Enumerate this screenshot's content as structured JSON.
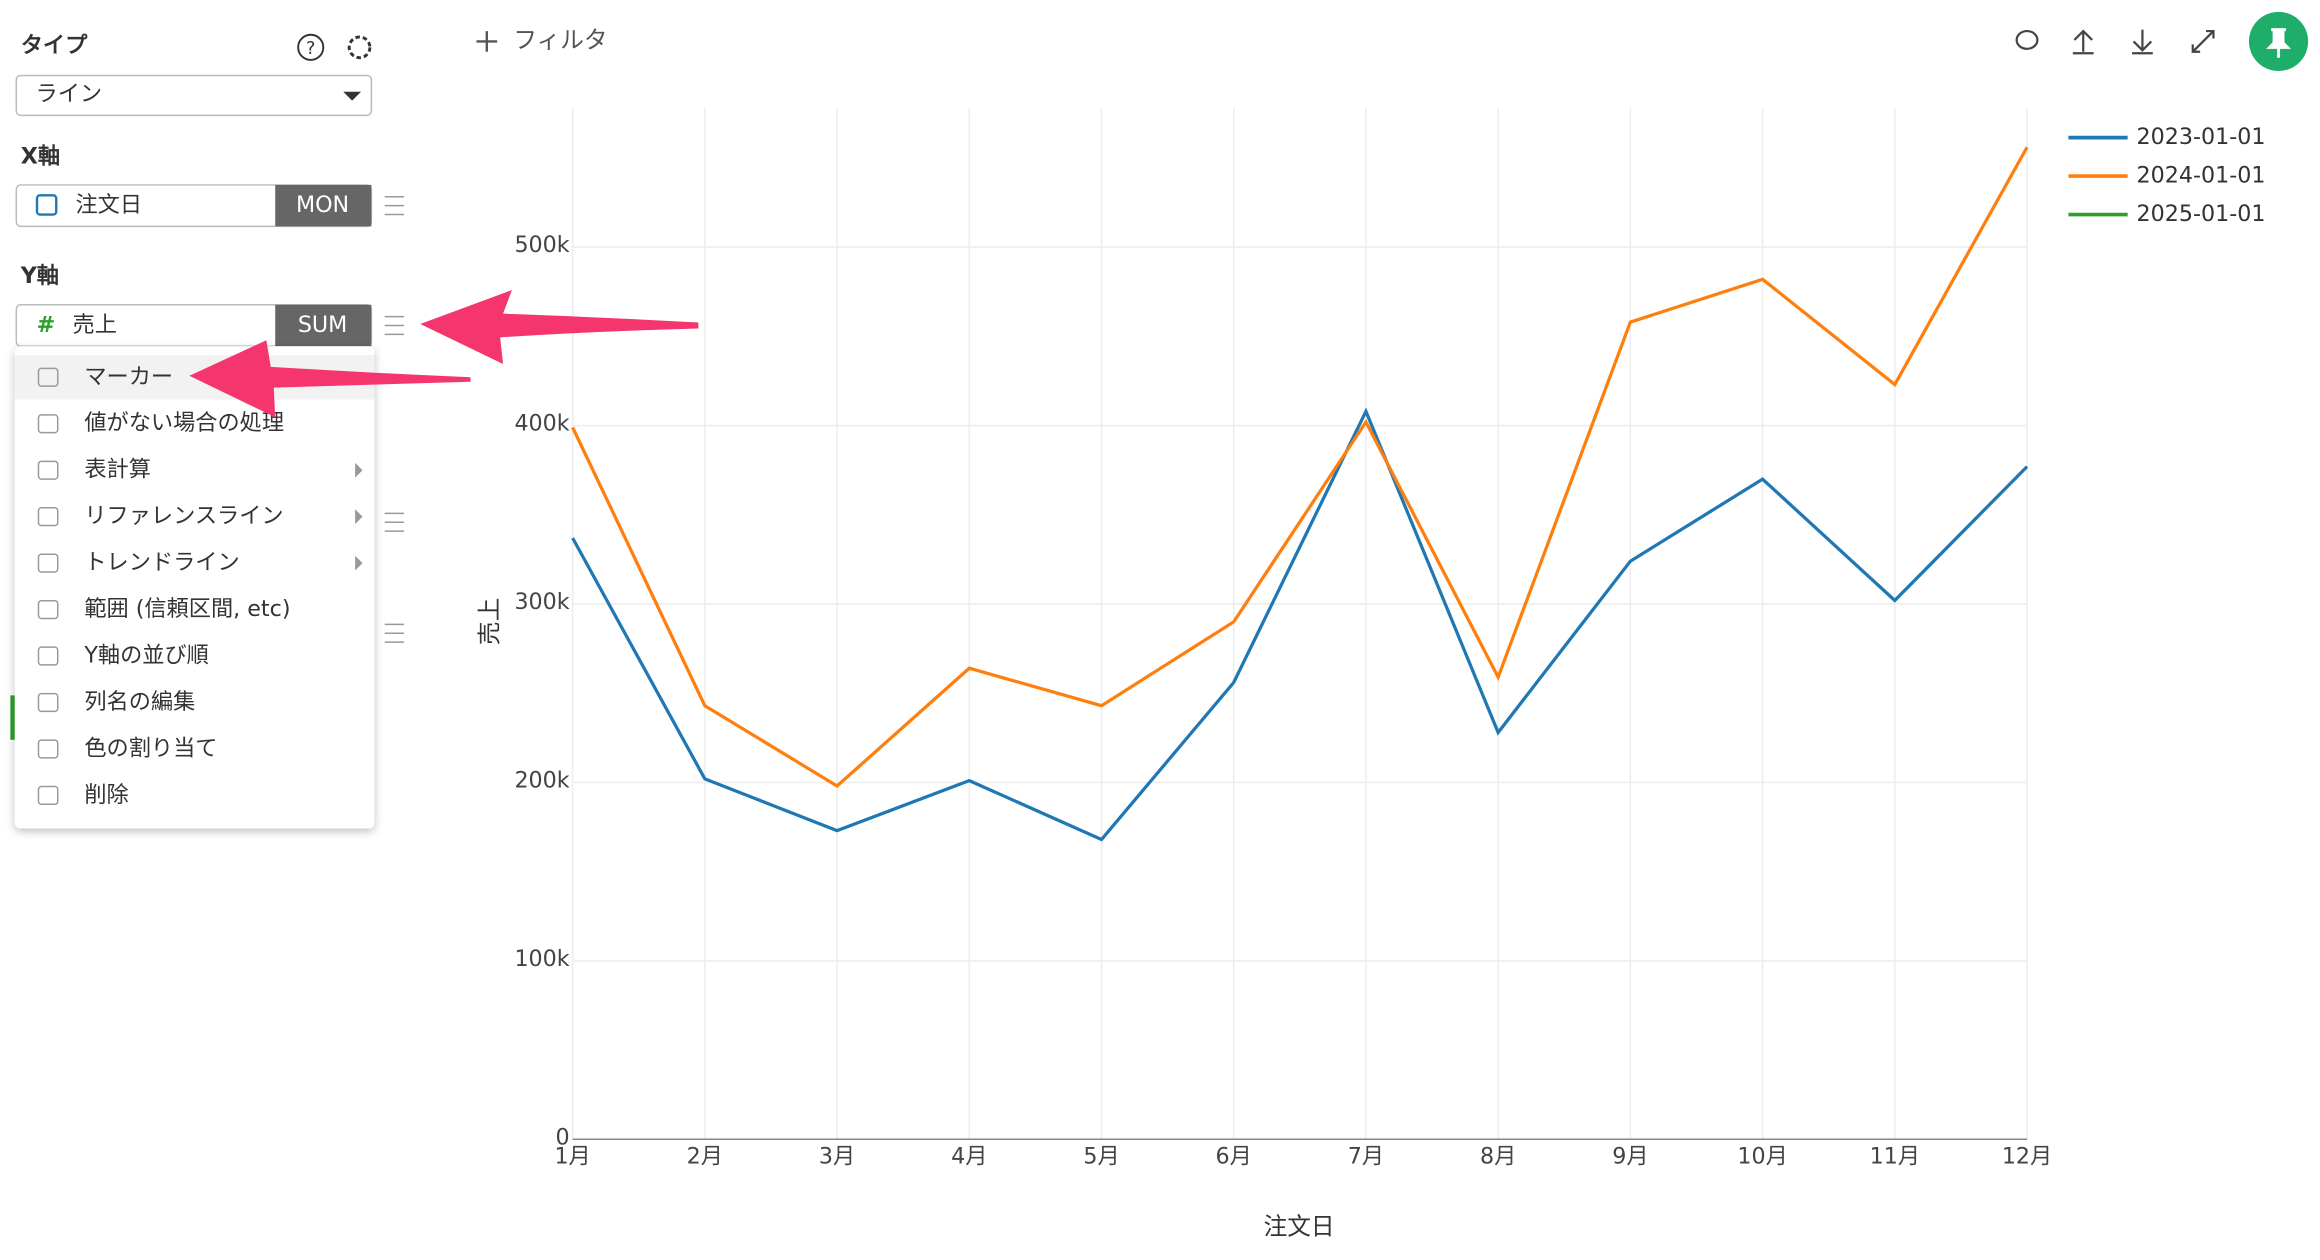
{
  "panel": {
    "type_label": "タイプ",
    "type_value": "ライン",
    "x_axis_label": "X軸",
    "x_field": "注文日",
    "x_agg": "MON",
    "y_axis_label": "Y軸",
    "y_field": "売上",
    "y_agg": "SUM",
    "menu": [
      {
        "label": "マーカー"
      },
      {
        "label": "値がない場合の処理"
      },
      {
        "label": "表計算",
        "submenu": true
      },
      {
        "label": "リファレンスライン",
        "submenu": true
      },
      {
        "label": "トレンドライン",
        "submenu": true
      },
      {
        "label": "範囲 (信頼区間, etc)"
      },
      {
        "label": "Y軸の並び順"
      },
      {
        "label": "列名の編集"
      },
      {
        "label": "色の割り当て"
      },
      {
        "label": "削除"
      }
    ]
  },
  "toolbar": {
    "filter": "フィルタ"
  },
  "chart_data": {
    "type": "line",
    "xlabel": "注文日",
    "ylabel": "売上",
    "categories": [
      "1月",
      "2月",
      "3月",
      "4月",
      "5月",
      "6月",
      "7月",
      "8月",
      "9月",
      "10月",
      "11月",
      "12月"
    ],
    "series": [
      {
        "name": "2023-01-01",
        "color": "#1f77b4",
        "values": [
          337000,
          202000,
          173000,
          201000,
          168000,
          256000,
          408000,
          228000,
          324000,
          370000,
          302000,
          377000
        ]
      },
      {
        "name": "2024-01-01",
        "color": "#ff7f0e",
        "values": [
          399000,
          243000,
          198000,
          264000,
          243000,
          290000,
          402000,
          259000,
          458000,
          482000,
          423000,
          556000
        ]
      },
      {
        "name": "2025-01-01",
        "color": "#2ca02c",
        "values": [
          null,
          null,
          null,
          null,
          null,
          null,
          null,
          null,
          null,
          null,
          null,
          null
        ]
      }
    ],
    "ylim": [
      0,
      578000
    ],
    "yticks": [
      0,
      {
        "value": 100000,
        "label": "100k"
      },
      {
        "value": 200000,
        "label": "200k"
      },
      {
        "value": 300000,
        "label": "300k"
      },
      {
        "value": 400000,
        "label": "400k"
      },
      {
        "value": 500000,
        "label": "500k"
      }
    ],
    "grid": true,
    "legend": "top-right"
  }
}
